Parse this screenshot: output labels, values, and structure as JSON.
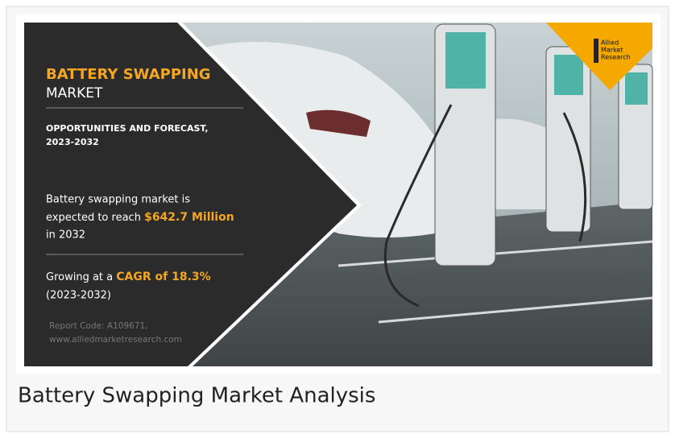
{
  "banner": {
    "title": "BATTERY SWAPPING",
    "title_line2": "MARKET",
    "subtitle_line1": "OPPORTUNITIES AND FORECAST,",
    "subtitle_line2": "2023-2032",
    "stat1_line1": "Battery swapping market is",
    "stat1_prefix": "expected to reach",
    "stat1_value": "$642.7 Million",
    "stat1_line3": "in 2032",
    "stat2_prefix": "Growing at a",
    "stat2_value": "CAGR of 18.3%",
    "stat2_line2": "(2023-2032)",
    "report_code": "Report Code: A109671,",
    "website": "www.alliedmarketresearch.com",
    "logo": [
      "Allied",
      "Market",
      "Research"
    ]
  },
  "caption": "Battery Swapping Market Analysis"
}
